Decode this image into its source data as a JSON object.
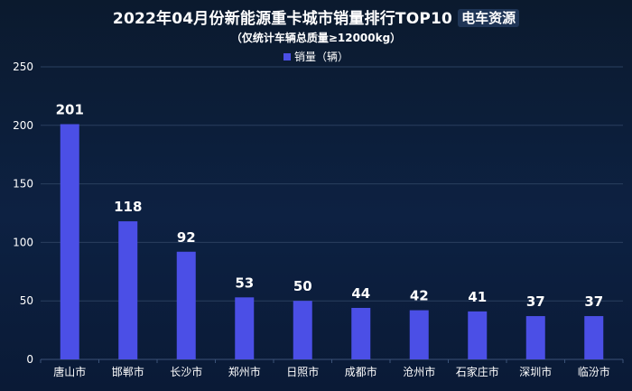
{
  "header": {
    "title": "2022年04月份新能源重卡城市销量排行TOP10",
    "brand": "电车资源",
    "subtitle": "（仅统计车辆总质量≥12000kg）"
  },
  "colors": {
    "bar": "#4b4fe6",
    "grid": "#2a3f5f",
    "axis_text": "#ffffff"
  },
  "chart_data": {
    "type": "bar",
    "categories": [
      "唐山市",
      "邯郸市",
      "长沙市",
      "郑州市",
      "日照市",
      "成都市",
      "沧州市",
      "石家庄市",
      "深圳市",
      "临汾市"
    ],
    "series": [
      {
        "name": "销量（辆）",
        "values": [
          201,
          118,
          92,
          53,
          50,
          44,
          42,
          41,
          37,
          37
        ]
      }
    ],
    "title": "2022年04月份新能源重卡城市销量排行TOP10",
    "ylim": [
      0,
      250
    ],
    "yticks": [
      0,
      50,
      100,
      150,
      200,
      250
    ],
    "grid": true,
    "legend": "top-center"
  }
}
